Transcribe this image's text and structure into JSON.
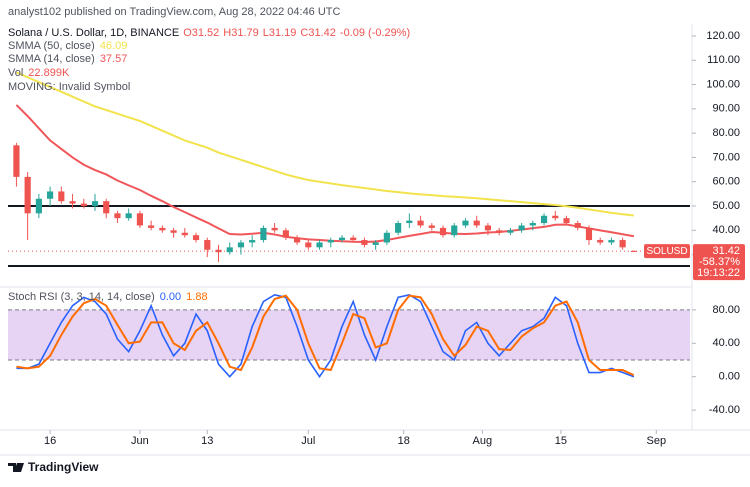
{
  "header": {
    "publisher": "analyst102 published on TradingView.com, Aug 28, 2022 04:46 UTC"
  },
  "chart_data": [
    {
      "type": "candlestick",
      "title": "Solana / U.S. Dollar, 1D, BINANCE",
      "ohlc_legend": [
        "O31.52",
        "H31.79",
        "L31.19",
        "C31.42",
        "-0.09 (-0.29%)"
      ],
      "extra_legend": [
        "Vol",
        "22.899K",
        "MOVING: Invalid Symbol"
      ],
      "x": [
        0,
        2,
        4,
        6,
        8,
        10,
        12,
        14,
        16,
        18,
        20,
        22,
        24,
        26,
        28,
        30,
        32,
        34,
        36,
        38,
        40,
        42,
        44,
        46,
        48,
        50,
        52,
        54,
        56,
        58,
        60,
        62,
        64,
        66,
        68,
        70,
        72,
        74,
        76,
        78,
        80,
        82,
        84,
        86,
        88,
        90,
        92,
        94,
        96,
        98,
        100,
        102,
        104,
        106,
        108,
        110
      ],
      "open": [
        75,
        62,
        47,
        53,
        56,
        52,
        51,
        50,
        52,
        47,
        45,
        47,
        42,
        41,
        40,
        39,
        38,
        36,
        32,
        31,
        33,
        35,
        36,
        41,
        40,
        37,
        35,
        33,
        35,
        36,
        37,
        36,
        34,
        35,
        39,
        43,
        44,
        42,
        41,
        38,
        42,
        44,
        42,
        40,
        39,
        40,
        42,
        43,
        46,
        45,
        43,
        41,
        36,
        35,
        36,
        31.52
      ],
      "high": [
        76,
        64,
        55,
        58,
        58,
        55,
        53,
        55,
        53,
        48,
        49,
        48,
        44,
        42,
        41,
        41,
        39,
        37,
        34,
        35,
        36,
        38,
        42,
        43,
        41,
        38,
        36,
        36,
        37,
        38,
        38,
        37,
        36,
        40,
        44,
        47,
        46,
        43,
        42,
        43,
        45,
        46,
        43,
        41,
        41,
        43,
        44,
        47,
        48,
        46,
        44,
        42,
        37,
        37,
        37,
        31.79
      ],
      "low": [
        58,
        36,
        45,
        50,
        51,
        49,
        49,
        48,
        45,
        43,
        44,
        41,
        40,
        39,
        37,
        37,
        35,
        29,
        27,
        30,
        30,
        33,
        35,
        39,
        36,
        34,
        32,
        32,
        33,
        35,
        35,
        33,
        32,
        34,
        38,
        41,
        41,
        40,
        37,
        37,
        41,
        41,
        38,
        38,
        38,
        39,
        40,
        42,
        44,
        42,
        40,
        34,
        34,
        34,
        32,
        31.19
      ],
      "close": [
        62,
        47,
        53,
        56,
        52,
        51,
        50,
        52,
        47,
        45,
        47,
        42,
        41,
        40,
        39,
        38,
        36,
        32,
        31,
        33,
        35,
        36,
        41,
        40,
        37,
        35,
        33,
        35,
        36,
        37,
        36,
        34,
        35,
        39,
        43,
        44,
        42,
        41,
        38,
        42,
        44,
        42,
        40,
        39,
        40,
        42,
        43,
        46,
        45,
        43,
        41,
        36,
        35,
        36,
        33,
        31.42
      ],
      "up_color": "#26a69a",
      "down_color": "#ef5350",
      "series": [
        {
          "name": "SMMA (50, close)",
          "color": "#f2e34c",
          "legend_value": 46.09,
          "values": [
            105,
            103,
            101,
            99,
            97,
            95,
            93,
            91,
            89.5,
            88,
            86.5,
            85,
            83,
            81,
            79,
            77,
            75.5,
            74,
            72,
            70.5,
            69,
            67.5,
            66,
            64.5,
            63,
            61.8,
            60.7,
            60,
            59.3,
            58.6,
            58,
            57.4,
            56.8,
            56.2,
            55.7,
            55.2,
            54.8,
            54.5,
            54.1,
            53.8,
            53.5,
            53.2,
            52.8,
            52.4,
            52,
            51.6,
            51.2,
            50.8,
            50.4,
            49.9,
            49.3,
            48.6,
            47.9,
            47.2,
            46.6,
            46.09
          ]
        },
        {
          "name": "SMMA (14, close)",
          "color": "#f0565a",
          "legend_value": 37.57,
          "values": [
            91.6,
            87,
            82,
            77,
            73.5,
            70,
            67,
            64.8,
            63,
            60.5,
            58.5,
            56.6,
            54.2,
            52,
            49.6,
            47.5,
            45.3,
            43.2,
            40.8,
            38.5,
            38.3,
            38.6,
            39,
            38.3,
            37.3,
            36.8,
            36.3,
            36,
            35.7,
            35.5,
            35.3,
            35.2,
            35.4,
            36,
            36.9,
            37.7,
            38.5,
            39.3,
            39,
            38.6,
            38.5,
            38.7,
            39.1,
            39.3,
            39.8,
            40.3,
            40.9,
            41.4,
            42.3,
            42.4,
            41.6,
            40.8,
            40,
            39.2,
            38.4,
            37.57
          ]
        }
      ],
      "hlines": [
        50,
        25.3
      ],
      "last_price": 31.42,
      "symbol": "SOLUSD",
      "change_label": "-58.37%",
      "countdown": "19:13:22",
      "xlim": [
        -1.5,
        120
      ],
      "xticks": [
        {
          "value": 6,
          "label": "16"
        },
        {
          "value": 22,
          "label": "Jun"
        },
        {
          "value": 34,
          "label": "13"
        },
        {
          "value": 52,
          "label": "Jul"
        },
        {
          "value": 69,
          "label": "18"
        },
        {
          "value": 83,
          "label": "Aug"
        },
        {
          "value": 97,
          "label": "15"
        },
        {
          "value": 114,
          "label": "Sep"
        }
      ],
      "ylim": [
        17.5,
        131.5
      ],
      "yticks": [
        {
          "value": 30,
          "label": "30.00"
        },
        {
          "value": 40,
          "label": "40.00"
        },
        {
          "value": 50,
          "label": "50.00"
        },
        {
          "value": 60,
          "label": "60.00"
        },
        {
          "value": 70,
          "label": "70.00"
        },
        {
          "value": 80,
          "label": "80.00"
        },
        {
          "value": 90,
          "label": "90.00"
        },
        {
          "value": 100,
          "label": "100.00"
        },
        {
          "value": 110,
          "label": "110.00"
        },
        {
          "value": 120,
          "label": "120.00"
        }
      ]
    },
    {
      "type": "line",
      "title": "Stoch RSI (3, 3, 14, 14, close)",
      "x": [
        0,
        2,
        4,
        6,
        8,
        10,
        12,
        14,
        16,
        18,
        20,
        22,
        24,
        26,
        28,
        30,
        32,
        34,
        36,
        38,
        40,
        42,
        44,
        46,
        48,
        50,
        52,
        54,
        56,
        58,
        60,
        62,
        64,
        66,
        68,
        70,
        72,
        74,
        76,
        78,
        80,
        82,
        84,
        86,
        88,
        90,
        92,
        94,
        96,
        98,
        100,
        102,
        104,
        106,
        108,
        110
      ],
      "series": [
        {
          "color": "#2962ff",
          "legend_label": "0.00",
          "values": [
            10,
            10,
            15,
            40,
            65,
            85,
            95,
            90,
            75,
            45,
            30,
            55,
            85,
            50,
            25,
            40,
            75,
            55,
            15,
            0,
            15,
            60,
            90,
            98,
            95,
            60,
            20,
            0,
            20,
            60,
            90,
            50,
            20,
            60,
            95,
            98,
            90,
            60,
            30,
            20,
            55,
            65,
            40,
            25,
            40,
            55,
            60,
            70,
            95,
            85,
            40,
            5,
            5,
            10,
            5,
            0
          ]
        },
        {
          "color": "#ff6d00",
          "legend_label": "1.88",
          "values": [
            12,
            10,
            12,
            25,
            50,
            72,
            88,
            93,
            85,
            62,
            40,
            42,
            65,
            65,
            40,
            32,
            55,
            65,
            40,
            12,
            8,
            35,
            72,
            93,
            97,
            80,
            40,
            10,
            8,
            40,
            75,
            70,
            35,
            40,
            80,
            97,
            95,
            75,
            45,
            25,
            38,
            60,
            55,
            33,
            32,
            48,
            58,
            65,
            85,
            90,
            65,
            20,
            8,
            8,
            8,
            1.88
          ]
        }
      ],
      "band": [
        20,
        80
      ],
      "band_color": "#e7d3f3",
      "xlim": [
        -1.5,
        120
      ],
      "ylim": [
        -61.4,
        103.8
      ],
      "yticks": [
        {
          "value": -40,
          "label": "-40.00"
        },
        {
          "value": 0,
          "label": "0.00"
        },
        {
          "value": 40,
          "label": "40.00"
        },
        {
          "value": 80,
          "label": "80.00"
        }
      ]
    }
  ],
  "footer": {
    "brand": "TradingView"
  }
}
